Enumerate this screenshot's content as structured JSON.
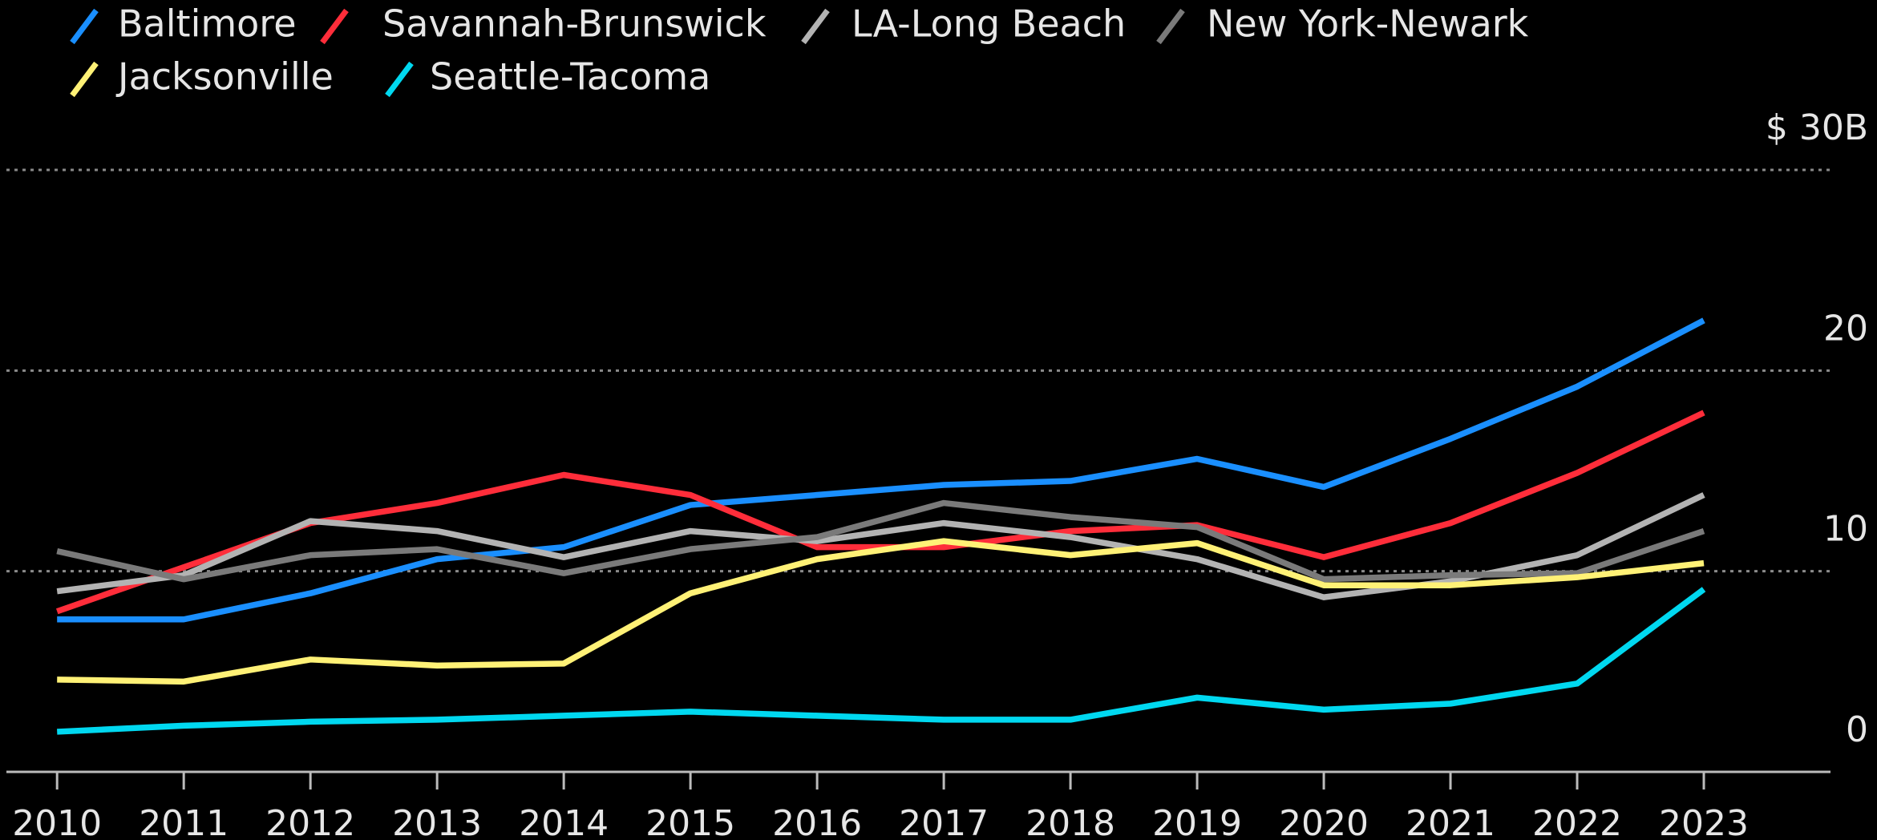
{
  "chart_data": {
    "type": "line",
    "x": [
      2010,
      2011,
      2012,
      2013,
      2014,
      2015,
      2016,
      2017,
      2018,
      2019,
      2020,
      2021,
      2022,
      2023
    ],
    "xlim": [
      2009.6,
      2024
    ],
    "xticks": [
      2010,
      2011,
      2012,
      2013,
      2014,
      2015,
      2016,
      2017,
      2018,
      2019,
      2020,
      2021,
      2022,
      2023
    ],
    "ylim": [
      0,
      30
    ],
    "yticks": [
      0,
      10,
      20,
      {
        "value": 30,
        "label": "$ 30B"
      }
    ],
    "grid": true,
    "series": [
      {
        "name": "Baltimore",
        "color": "#1a8fff",
        "values": [
          7.6,
          7.6,
          8.9,
          10.6,
          11.2,
          13.3,
          13.8,
          14.3,
          14.5,
          15.6,
          14.2,
          16.6,
          19.2,
          22.5
        ]
      },
      {
        "name": "Savannah-Brunswick",
        "color": "#ff2d3a",
        "values": [
          8.0,
          10.2,
          12.4,
          13.4,
          14.8,
          13.8,
          11.2,
          11.2,
          12.0,
          12.3,
          10.7,
          12.4,
          14.9,
          17.9
        ]
      },
      {
        "name": "LA-Long Beach",
        "color": "#b3b3b3",
        "values": [
          9.0,
          9.8,
          12.5,
          12.0,
          10.7,
          12.0,
          11.5,
          12.4,
          11.7,
          10.6,
          8.7,
          9.5,
          10.8,
          13.8
        ]
      },
      {
        "name": "New York-Newark",
        "color": "#7a7a7a",
        "values": [
          11.0,
          9.6,
          10.8,
          11.1,
          9.9,
          11.1,
          11.7,
          13.4,
          12.7,
          12.2,
          9.6,
          9.8,
          9.9,
          12.0
        ]
      },
      {
        "name": "Jacksonville",
        "color": "#fff176",
        "values": [
          4.6,
          4.5,
          5.6,
          5.3,
          5.4,
          8.9,
          10.6,
          11.5,
          10.8,
          11.4,
          9.3,
          9.3,
          9.7,
          10.4
        ]
      },
      {
        "name": "Seattle-Tacoma",
        "color": "#00d8f0",
        "values": [
          2.0,
          2.3,
          2.5,
          2.6,
          2.8,
          3.0,
          2.8,
          2.6,
          2.6,
          3.7,
          3.1,
          3.4,
          4.4,
          9.1
        ]
      }
    ]
  }
}
